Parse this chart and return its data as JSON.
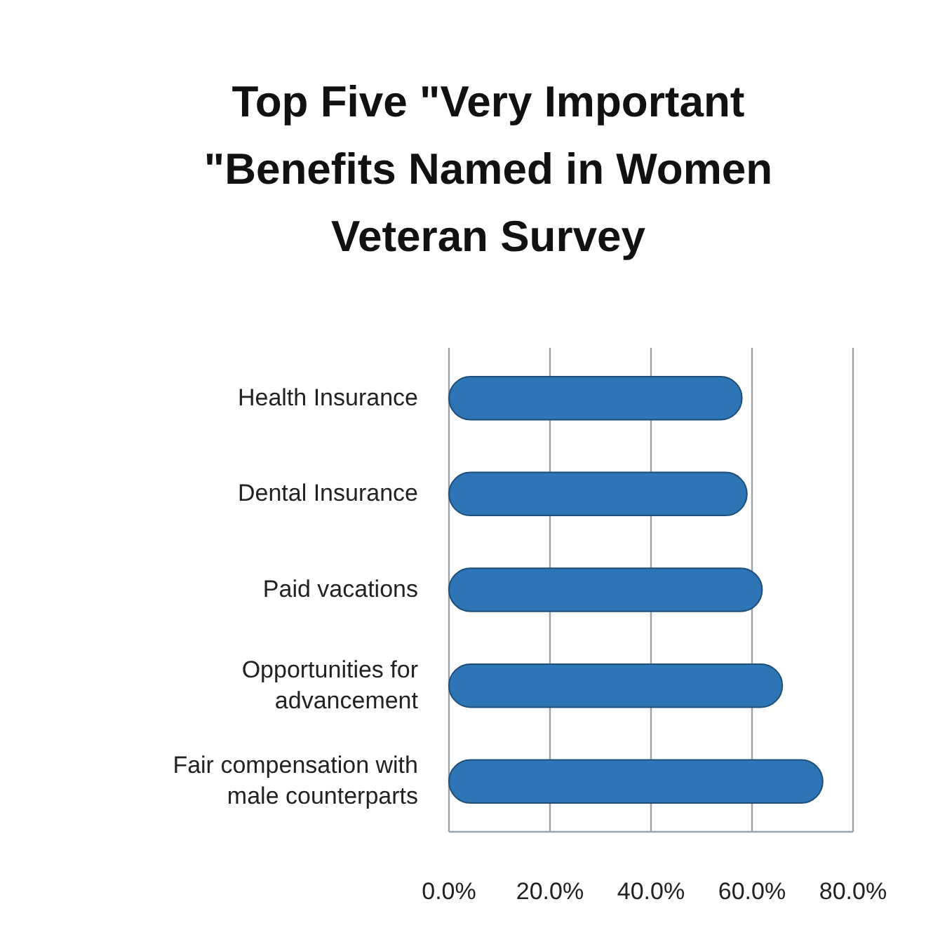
{
  "chart_data": {
    "type": "bar",
    "orientation": "horizontal",
    "title": "Top Five \"Very Important \"Benefits Named in Women Veteran Survey",
    "categories": [
      "Health Insurance",
      "Dental Insurance",
      "Paid vacations",
      "Opportunities for advancement",
      "Fair compensation with male counterparts"
    ],
    "values": [
      58,
      59,
      62,
      66,
      74
    ],
    "color": "#2e75b6",
    "xlim": [
      0,
      80
    ],
    "xticks": [
      {
        "value": 0,
        "label": "0.0%"
      },
      {
        "value": 20,
        "label": "20.0%"
      },
      {
        "value": 40,
        "label": "40.0%"
      },
      {
        "value": 60,
        "label": "60.0%"
      },
      {
        "value": 80,
        "label": "80.0%"
      }
    ],
    "grid": "x"
  }
}
